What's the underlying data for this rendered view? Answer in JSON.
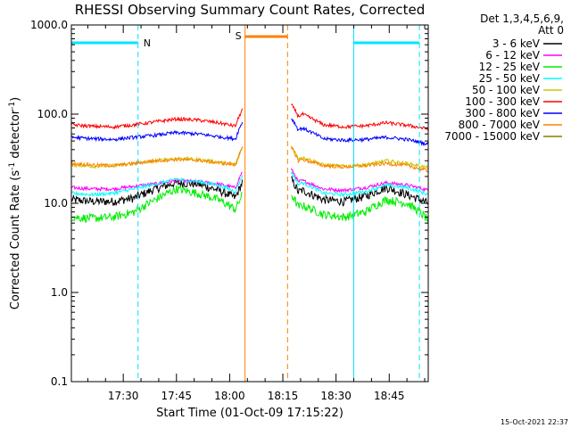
{
  "chart_data": {
    "type": "line",
    "title": "RHESSI Observing Summary Count Rates, Corrected",
    "xlabel": "Start Time (01-Oct-09 17:15:22)",
    "ylabel_main": "Corrected Count Rate (s",
    "ylabel_sup1": "-1",
    "ylabel_mid": " detector",
    "ylabel_sup2": "-1",
    "ylabel_end": ")",
    "y_scale": "log",
    "ylim": [
      0.1,
      1000
    ],
    "xlim": [
      "17:15:22",
      "18:56:00"
    ],
    "x_ticks": [
      "17:30",
      "17:45",
      "18:00",
      "18:15",
      "18:30",
      "18:45"
    ],
    "y_ticks": [
      "0.1",
      "1.0",
      "10.0",
      "100.0",
      "1000.0"
    ],
    "legend_header": [
      "Det 1,3,4,5,6,9,",
      "Att 0"
    ],
    "legend_placement": "top-right outside",
    "footer_timestamp": "15-Oct-2021 22:37",
    "markers": [
      {
        "label": "N",
        "color": "#00e5ff",
        "start": "17:15:22",
        "end": "17:34:10"
      },
      {
        "label": "S",
        "color": "#ff8000",
        "start": "18:04:20",
        "end": "18:16:20"
      },
      {
        "label": "",
        "color": "#00e5ff",
        "start": "18:35:00",
        "end": "18:53:30"
      }
    ],
    "data_gap": {
      "start": "18:04:20",
      "end": "18:17:00"
    },
    "series": [
      {
        "name": "3 - 6 keV",
        "color": "#000000",
        "values": [
          11.0,
          10.5,
          10.5,
          11.5,
          14.5,
          17.0,
          16.5,
          14.0,
          11.0,
          10.5,
          11.0,
          14.0,
          11.0,
          10.5,
          12.0,
          15.0,
          12.5,
          10.0
        ]
      },
      {
        "name": "6 - 12 keV",
        "color": "#ff00ff",
        "values": [
          15.0,
          14.5,
          14.5,
          15.5,
          16.5,
          18.0,
          17.5,
          16.5,
          14.5,
          14.0,
          14.5,
          18.0,
          14.5,
          14.0,
          15.0,
          17.0,
          16.0,
          14.0
        ]
      },
      {
        "name": "12 - 25 keV",
        "color": "#00ee00",
        "values": [
          7.0,
          6.8,
          7.0,
          8.0,
          11.0,
          14.5,
          13.0,
          11.0,
          8.0,
          7.5,
          7.5,
          9.5,
          7.5,
          7.0,
          8.0,
          11.0,
          10.0,
          6.5
        ]
      },
      {
        "name": "25 - 50 keV",
        "color": "#00ffff",
        "values": [
          13.0,
          12.5,
          13.0,
          14.5,
          16.5,
          18.5,
          17.5,
          16.0,
          13.0,
          12.5,
          13.0,
          17.0,
          13.0,
          12.5,
          13.5,
          16.0,
          15.0,
          12.5
        ]
      },
      {
        "name": "50 - 100 keV",
        "color": "#c8c800",
        "values": [
          27.0,
          26.0,
          26.5,
          28.0,
          30.0,
          32.0,
          31.0,
          29.0,
          27.0,
          26.0,
          26.5,
          33.0,
          27.0,
          26.0,
          27.0,
          30.0,
          28.0,
          25.0
        ]
      },
      {
        "name": "100 - 300 keV",
        "color": "#ff0000",
        "values": [
          76.0,
          73.0,
          72.0,
          76.0,
          82.0,
          88.0,
          86.0,
          80.0,
          72.0,
          70.0,
          72.0,
          100.0,
          76.0,
          72.0,
          74.0,
          80.0,
          75.0,
          68.0
        ]
      },
      {
        "name": "300 - 800 keV",
        "color": "#0000ff",
        "values": [
          55.0,
          53.0,
          52.0,
          55.0,
          58.0,
          62.0,
          60.0,
          56.0,
          52.0,
          50.0,
          52.0,
          70.0,
          53.0,
          51.0,
          52.0,
          55.0,
          52.0,
          46.0
        ]
      },
      {
        "name": "800 - 7000 keV",
        "color": "#ff8000",
        "values": [
          28.0,
          27.0,
          26.5,
          28.0,
          30.0,
          31.0,
          30.5,
          28.5,
          26.5,
          25.5,
          26.0,
          31.0,
          26.5,
          25.5,
          26.5,
          28.0,
          26.5,
          23.0
        ]
      },
      {
        "name": "7000 - 15000 keV",
        "color": "#808000",
        "values": []
      }
    ]
  }
}
